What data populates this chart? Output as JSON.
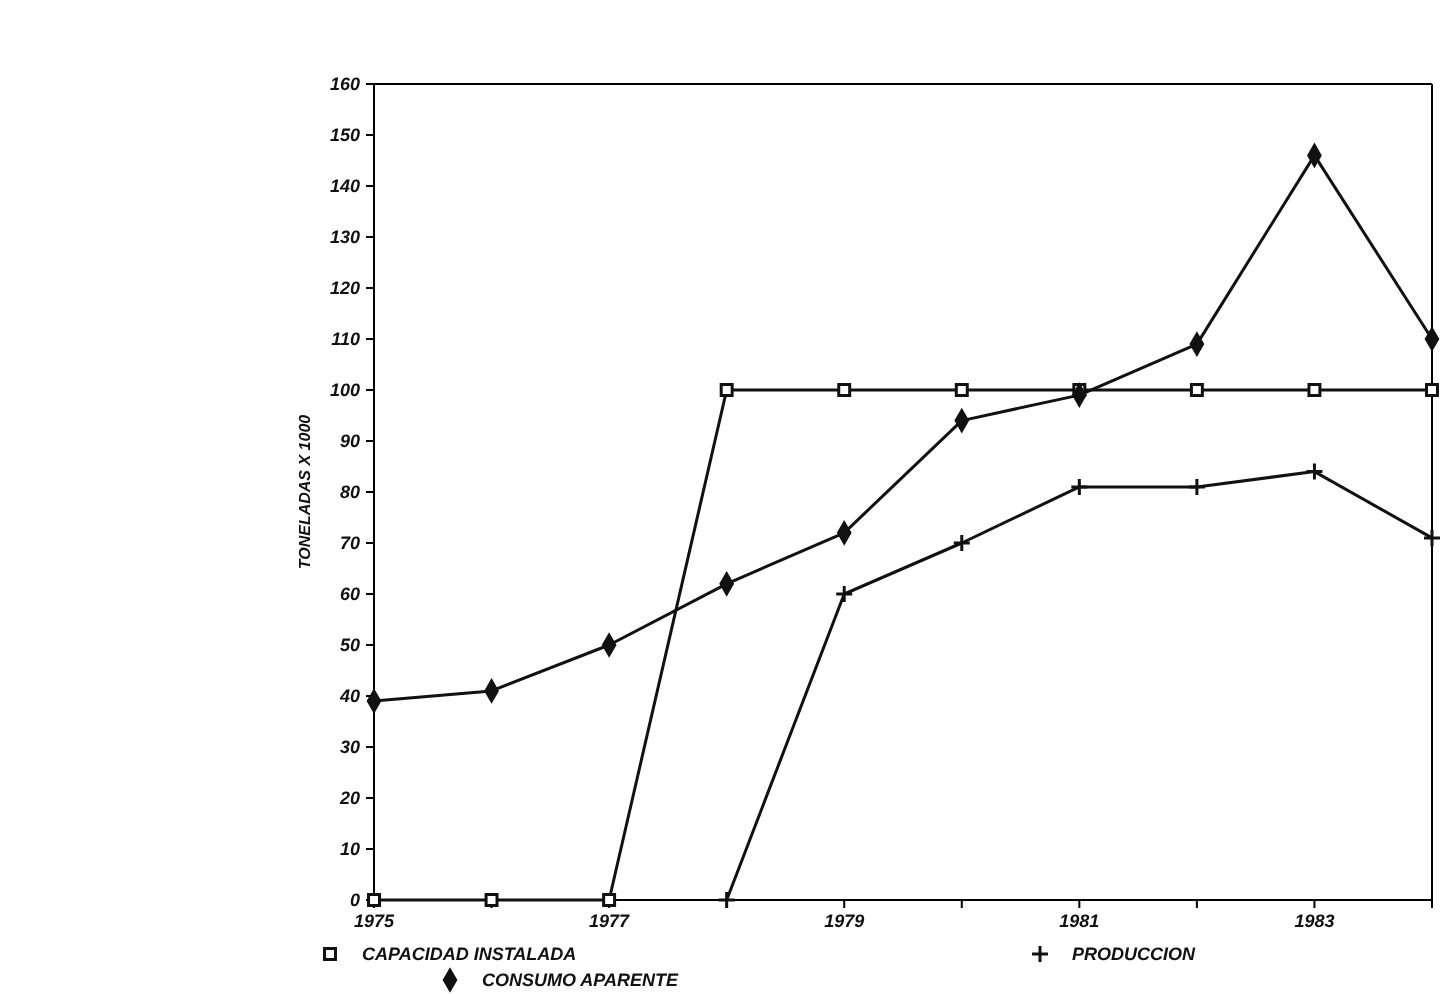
{
  "chart_data": {
    "type": "line",
    "ylabel": "TONELADAS X 1000",
    "x": [
      1975,
      1976,
      1977,
      1978,
      1979,
      1980,
      1981,
      1982,
      1983,
      1984
    ],
    "series": [
      {
        "name": "CAPACIDAD INSTALADA",
        "color": "#111111",
        "marker": "square",
        "values": [
          0,
          0,
          0,
          100,
          100,
          100,
          100,
          100,
          100,
          100
        ]
      },
      {
        "name": "PRODUCCION",
        "color": "#111111",
        "marker": "cross",
        "values": [
          null,
          null,
          null,
          0,
          60,
          70,
          81,
          81,
          84,
          71
        ]
      },
      {
        "name": "CONSUMO APARENTE",
        "color": "#111111",
        "marker": "diamond",
        "values": [
          39,
          41,
          50,
          62,
          72,
          94,
          99,
          109,
          146,
          110
        ]
      }
    ],
    "xlim": [
      1975,
      1984
    ],
    "xticks": [
      1975,
      {
        "value": 1976,
        "label": null
      },
      1977,
      {
        "value": 1978,
        "label": null
      },
      1979,
      {
        "value": 1980,
        "label": null
      },
      1981,
      {
        "value": 1982,
        "label": null
      },
      1983
    ],
    "ylim": [
      0,
      160
    ],
    "yticks": [
      0,
      10,
      20,
      30,
      40,
      50,
      60,
      70,
      80,
      90,
      100,
      110,
      120,
      130,
      140,
      150,
      160
    ],
    "grid": false,
    "legend": "bottom",
    "line_style": "solid"
  }
}
